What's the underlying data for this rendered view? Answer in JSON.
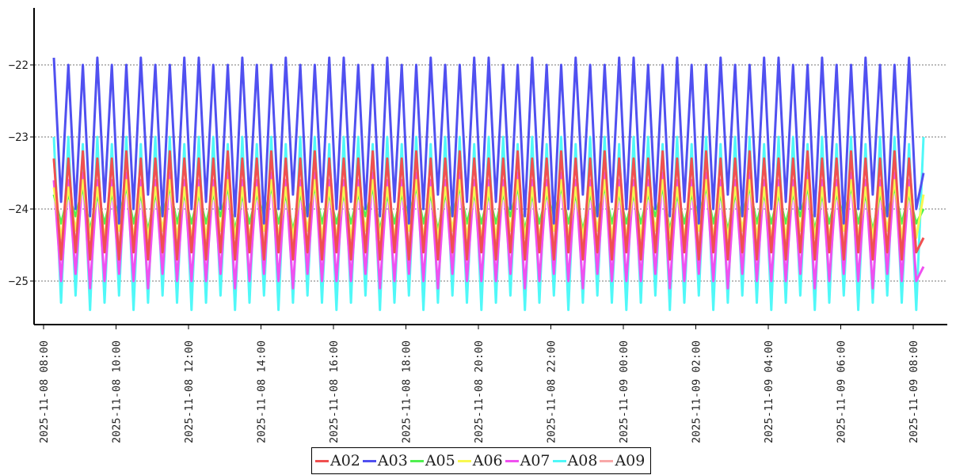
{
  "chart_data": {
    "type": "line",
    "title": "",
    "xlabel": "",
    "ylabel": "",
    "ylim": [
      -25.59,
      -21.21
    ],
    "grid": "horizontal-dashed",
    "legend_placement": "bottom-center",
    "x_start": "2025-11-08 08:17",
    "x_step_minutes": 12,
    "yticks": [
      {
        "value": -22,
        "label": "−22"
      },
      {
        "value": -23,
        "label": "−23"
      },
      {
        "value": -24,
        "label": "−24"
      },
      {
        "value": -25,
        "label": "−25"
      }
    ],
    "xticks": [
      {
        "hours": 0,
        "label": "2025-11-08  08:00"
      },
      {
        "hours": 2,
        "label": "2025-11-08  10:00"
      },
      {
        "hours": 4,
        "label": "2025-11-08  12:00"
      },
      {
        "hours": 6,
        "label": "2025-11-08  14:00"
      },
      {
        "hours": 8,
        "label": "2025-11-08  16:00"
      },
      {
        "hours": 10,
        "label": "2025-11-08  18:00"
      },
      {
        "hours": 12,
        "label": "2025-11-08  20:00"
      },
      {
        "hours": 14,
        "label": "2025-11-08  22:00"
      },
      {
        "hours": 16,
        "label": "2025-11-09  00:00"
      },
      {
        "hours": 18,
        "label": "2025-11-09  02:00"
      },
      {
        "hours": 20,
        "label": "2025-11-09  04:00"
      },
      {
        "hours": 22,
        "label": "2025-11-09  06:00"
      },
      {
        "hours": 24,
        "label": "2025-11-09  08:00"
      }
    ],
    "series": [
      {
        "name": "A02",
        "color": "#f05050",
        "values": [
          -23.3,
          -24.7,
          -23.3,
          -24.6,
          -23.2,
          -24.7,
          -23.3,
          -24.6,
          -23.3,
          -24.7,
          -23.2,
          -24.6,
          -23.3,
          -24.7,
          -23.3,
          -24.6,
          -23.2,
          -24.7,
          -23.3,
          -24.6,
          -23.3,
          -24.7,
          -23.3,
          -24.6,
          -23.2,
          -24.7,
          -23.3,
          -24.6,
          -23.3,
          -24.7,
          -23.2,
          -24.6,
          -23.3,
          -24.7,
          -23.3,
          -24.6,
          -23.2,
          -24.7,
          -23.3,
          -24.6,
          -23.3,
          -24.7,
          -23.3,
          -24.6,
          -23.2,
          -24.7,
          -23.3,
          -24.6,
          -23.3,
          -24.7,
          -23.2,
          -24.6,
          -23.3,
          -24.7,
          -23.3,
          -24.6,
          -23.2,
          -24.7,
          -23.3,
          -24.6,
          -23.3,
          -24.7,
          -23.3,
          -24.6,
          -23.2,
          -24.7,
          -23.3,
          -24.6,
          -23.3,
          -24.7,
          -23.2,
          -24.6,
          -23.3,
          -24.7,
          -23.3,
          -24.6,
          -23.2,
          -24.7,
          -23.3,
          -24.6,
          -23.3,
          -24.7,
          -23.3,
          -24.6,
          -23.2,
          -24.7,
          -23.3,
          -24.6,
          -23.3,
          -24.7,
          -23.2,
          -24.6,
          -23.3,
          -24.7,
          -23.3,
          -24.6,
          -23.2,
          -24.7,
          -23.3,
          -24.6,
          -23.3,
          -24.7,
          -23.3,
          -24.6,
          -23.2,
          -24.7,
          -23.3,
          -24.6,
          -23.3,
          -24.7,
          -23.2,
          -24.6,
          -23.3,
          -24.7,
          -23.3,
          -24.6,
          -23.2,
          -24.7,
          -23.3,
          -24.6,
          -24.4
        ]
      },
      {
        "name": "A03",
        "color": "#5050f0",
        "values": [
          -21.9,
          -23.9,
          -22.0,
          -24.0,
          -22.0,
          -24.1,
          -21.9,
          -23.9,
          -22.0,
          -24.2,
          -22.0,
          -24.0,
          -21.9,
          -23.8,
          -22.0,
          -24.1,
          -22.0,
          -23.9,
          -21.9,
          -24.0,
          -21.9,
          -23.9,
          -22.0,
          -24.0,
          -22.0,
          -24.1,
          -21.9,
          -23.9,
          -22.0,
          -24.2,
          -22.0,
          -24.0,
          -21.9,
          -23.8,
          -22.0,
          -24.1,
          -22.0,
          -23.9,
          -21.9,
          -24.0,
          -21.9,
          -23.9,
          -22.0,
          -24.0,
          -22.0,
          -24.1,
          -21.9,
          -23.9,
          -22.0,
          -24.2,
          -22.0,
          -24.0,
          -21.9,
          -23.8,
          -22.0,
          -24.1,
          -22.0,
          -23.9,
          -21.9,
          -24.0,
          -21.9,
          -23.9,
          -22.0,
          -24.0,
          -22.0,
          -24.1,
          -21.9,
          -23.9,
          -22.0,
          -24.2,
          -22.0,
          -24.0,
          -21.9,
          -23.8,
          -22.0,
          -24.1,
          -22.0,
          -23.9,
          -21.9,
          -24.0,
          -21.9,
          -23.9,
          -22.0,
          -24.0,
          -22.0,
          -24.1,
          -21.9,
          -23.9,
          -22.0,
          -24.2,
          -22.0,
          -24.0,
          -21.9,
          -23.8,
          -22.0,
          -24.1,
          -22.0,
          -23.9,
          -21.9,
          -24.0,
          -21.9,
          -23.9,
          -22.0,
          -24.0,
          -22.0,
          -24.1,
          -21.9,
          -23.9,
          -22.0,
          -24.2,
          -22.0,
          -24.0,
          -21.9,
          -23.8,
          -22.0,
          -24.1,
          -22.0,
          -23.9,
          -21.9,
          -24.0,
          -23.5
        ]
      },
      {
        "name": "A05",
        "color": "#50f050",
        "values": [
          -23.8,
          -24.2,
          -23.8,
          -24.1,
          -23.7,
          -24.3,
          -23.8,
          -24.2,
          -23.8,
          -24.1,
          -23.7,
          -24.2,
          -23.8,
          -24.3,
          -23.8,
          -24.1,
          -23.7,
          -24.2,
          -23.8,
          -24.2,
          -23.8,
          -24.2,
          -23.8,
          -24.1,
          -23.7,
          -24.3,
          -23.8,
          -24.2,
          -23.8,
          -24.1,
          -23.7,
          -24.2,
          -23.8,
          -24.3,
          -23.8,
          -24.1,
          -23.7,
          -24.2,
          -23.8,
          -24.2,
          -23.8,
          -24.2,
          -23.8,
          -24.1,
          -23.7,
          -24.3,
          -23.8,
          -24.2,
          -23.8,
          -24.1,
          -23.7,
          -24.2,
          -23.8,
          -24.3,
          -23.8,
          -24.1,
          -23.7,
          -24.2,
          -23.8,
          -24.2,
          -23.8,
          -24.2,
          -23.8,
          -24.1,
          -23.7,
          -24.3,
          -23.8,
          -24.2,
          -23.8,
          -24.1,
          -23.7,
          -24.2,
          -23.8,
          -24.3,
          -23.8,
          -24.1,
          -23.7,
          -24.2,
          -23.8,
          -24.2,
          -23.8,
          -24.2,
          -23.8,
          -24.1,
          -23.7,
          -24.3,
          -23.8,
          -24.2,
          -23.8,
          -24.1,
          -23.7,
          -24.2,
          -23.8,
          -24.3,
          -23.8,
          -24.1,
          -23.7,
          -24.2,
          -23.8,
          -24.2,
          -23.8,
          -24.2,
          -23.8,
          -24.1,
          -23.7,
          -24.3,
          -23.8,
          -24.2,
          -23.8,
          -24.1,
          -23.7,
          -24.2,
          -23.8,
          -24.3,
          -23.8,
          -24.1,
          -23.7,
          -24.2,
          -23.8,
          -24.2,
          -24.0
        ]
      },
      {
        "name": "A06",
        "color": "#f8f850",
        "values": [
          -23.7,
          -24.4,
          -23.7,
          -24.3,
          -23.6,
          -24.4,
          -23.7,
          -24.4,
          -23.7,
          -24.3,
          -23.6,
          -24.4,
          -23.7,
          -24.4,
          -23.7,
          -24.3,
          -23.6,
          -24.4,
          -23.7,
          -24.4,
          -23.7,
          -24.4,
          -23.7,
          -24.3,
          -23.6,
          -24.4,
          -23.7,
          -24.4,
          -23.7,
          -24.3,
          -23.6,
          -24.4,
          -23.7,
          -24.4,
          -23.7,
          -24.3,
          -23.6,
          -24.4,
          -23.7,
          -24.4,
          -23.7,
          -24.4,
          -23.7,
          -24.3,
          -23.6,
          -24.4,
          -23.7,
          -24.4,
          -23.7,
          -24.3,
          -23.6,
          -24.4,
          -23.7,
          -24.4,
          -23.7,
          -24.3,
          -23.6,
          -24.4,
          -23.7,
          -24.4,
          -23.7,
          -24.4,
          -23.7,
          -24.3,
          -23.6,
          -24.4,
          -23.7,
          -24.4,
          -23.7,
          -24.3,
          -23.6,
          -24.4,
          -23.7,
          -24.4,
          -23.7,
          -24.3,
          -23.6,
          -24.4,
          -23.7,
          -24.4,
          -23.7,
          -24.4,
          -23.7,
          -24.3,
          -23.6,
          -24.4,
          -23.7,
          -24.4,
          -23.7,
          -24.3,
          -23.6,
          -24.4,
          -23.7,
          -24.4,
          -23.7,
          -24.3,
          -23.6,
          -24.4,
          -23.7,
          -24.4,
          -23.7,
          -24.4,
          -23.7,
          -24.3,
          -23.6,
          -24.4,
          -23.7,
          -24.4,
          -23.7,
          -24.3,
          -23.6,
          -24.4,
          -23.7,
          -24.4,
          -23.7,
          -24.3,
          -23.6,
          -24.4,
          -23.7,
          -24.4,
          -23.8
        ]
      },
      {
        "name": "A07",
        "color": "#f050f0",
        "values": [
          -23.6,
          -25.0,
          -23.6,
          -24.9,
          -23.5,
          -25.1,
          -23.6,
          -25.0,
          -23.6,
          -24.9,
          -23.5,
          -25.0,
          -23.6,
          -25.1,
          -23.6,
          -24.9,
          -23.5,
          -25.0,
          -23.6,
          -25.0,
          -23.6,
          -25.0,
          -23.6,
          -24.9,
          -23.5,
          -25.1,
          -23.6,
          -25.0,
          -23.6,
          -24.9,
          -23.5,
          -25.0,
          -23.6,
          -25.1,
          -23.6,
          -24.9,
          -23.5,
          -25.0,
          -23.6,
          -25.0,
          -23.6,
          -25.0,
          -23.6,
          -24.9,
          -23.5,
          -25.1,
          -23.6,
          -25.0,
          -23.6,
          -24.9,
          -23.5,
          -25.0,
          -23.6,
          -25.1,
          -23.6,
          -24.9,
          -23.5,
          -25.0,
          -23.6,
          -25.0,
          -23.6,
          -25.0,
          -23.6,
          -24.9,
          -23.5,
          -25.1,
          -23.6,
          -25.0,
          -23.6,
          -24.9,
          -23.5,
          -25.0,
          -23.6,
          -25.1,
          -23.6,
          -24.9,
          -23.5,
          -25.0,
          -23.6,
          -25.0,
          -23.6,
          -25.0,
          -23.6,
          -24.9,
          -23.5,
          -25.1,
          -23.6,
          -25.0,
          -23.6,
          -24.9,
          -23.5,
          -25.0,
          -23.6,
          -25.1,
          -23.6,
          -24.9,
          -23.5,
          -25.0,
          -23.6,
          -25.0,
          -23.6,
          -25.0,
          -23.6,
          -24.9,
          -23.5,
          -25.1,
          -23.6,
          -25.0,
          -23.6,
          -24.9,
          -23.5,
          -25.0,
          -23.6,
          -25.1,
          -23.6,
          -24.9,
          -23.5,
          -25.0,
          -23.6,
          -25.0,
          -24.8
        ]
      },
      {
        "name": "A08",
        "color": "#50f8f8",
        "values": [
          -23.0,
          -25.3,
          -23.0,
          -25.2,
          -23.1,
          -25.4,
          -23.0,
          -25.3,
          -23.1,
          -25.2,
          -23.0,
          -25.4,
          -23.1,
          -25.3,
          -23.0,
          -25.2,
          -23.0,
          -25.3,
          -23.1,
          -25.4,
          -23.0,
          -25.3,
          -23.0,
          -25.2,
          -23.1,
          -25.4,
          -23.0,
          -25.3,
          -23.1,
          -25.2,
          -23.0,
          -25.4,
          -23.1,
          -25.3,
          -23.0,
          -25.2,
          -23.0,
          -25.3,
          -23.1,
          -25.4,
          -23.0,
          -25.3,
          -23.0,
          -25.2,
          -23.1,
          -25.4,
          -23.0,
          -25.3,
          -23.1,
          -25.2,
          -23.0,
          -25.4,
          -23.1,
          -25.3,
          -23.0,
          -25.2,
          -23.0,
          -25.3,
          -23.1,
          -25.4,
          -23.0,
          -25.3,
          -23.0,
          -25.2,
          -23.1,
          -25.4,
          -23.0,
          -25.3,
          -23.1,
          -25.2,
          -23.0,
          -25.4,
          -23.1,
          -25.3,
          -23.0,
          -25.2,
          -23.0,
          -25.3,
          -23.1,
          -25.4,
          -23.0,
          -25.3,
          -23.0,
          -25.2,
          -23.1,
          -25.4,
          -23.0,
          -25.3,
          -23.1,
          -25.2,
          -23.0,
          -25.4,
          -23.1,
          -25.3,
          -23.0,
          -25.2,
          -23.0,
          -25.3,
          -23.1,
          -25.4,
          -23.0,
          -25.3,
          -23.0,
          -25.2,
          -23.1,
          -25.4,
          -23.0,
          -25.3,
          -23.1,
          -25.2,
          -23.0,
          -25.4,
          -23.1,
          -25.3,
          -23.0,
          -25.2,
          -23.0,
          -25.3,
          -23.1,
          -25.4,
          -23.0
        ]
      },
      {
        "name": "A09",
        "color": "#f8a8a8",
        "values": [
          -23.3,
          -24.6,
          -23.3,
          -24.6,
          -23.3,
          -24.7,
          -23.3,
          -24.6,
          -23.3,
          -24.6,
          -23.3,
          -24.6,
          -23.3,
          -24.6,
          -23.3,
          -24.7,
          -23.3,
          -24.6,
          -23.3,
          -24.6,
          -23.3,
          -24.6,
          -23.3,
          -24.6,
          -23.3,
          -24.7,
          -23.3,
          -24.6,
          -23.3,
          -24.6,
          -23.3,
          -24.6,
          -23.3,
          -24.6,
          -23.3,
          -24.7,
          -23.3,
          -24.6,
          -23.3,
          -24.6,
          -23.3,
          -24.6,
          -23.3,
          -24.6,
          -23.3,
          -24.7,
          -23.3,
          -24.6,
          -23.3,
          -24.6,
          -23.3,
          -24.6,
          -23.3,
          -24.6,
          -23.3,
          -24.7,
          -23.3,
          -24.6,
          -23.3,
          -24.6,
          -23.3,
          -24.6,
          -23.3,
          -24.6,
          -23.3,
          -24.7,
          -23.3,
          -24.6,
          -23.3,
          -24.6,
          -23.3,
          -24.6,
          -23.3,
          -24.6,
          -23.3,
          -24.7,
          -23.3,
          -24.6,
          -23.3,
          -24.6,
          -23.3,
          -24.6,
          -23.3,
          -24.6,
          -23.3,
          -24.7,
          -23.3,
          -24.6,
          -23.3,
          -24.6,
          -23.3,
          -24.6,
          -23.3,
          -24.6,
          -23.3,
          -24.7,
          -23.3,
          -24.6,
          -23.3,
          -24.6,
          -23.3,
          -24.6,
          -23.3,
          -24.6,
          -23.3,
          -24.7,
          -23.3,
          -24.6,
          -23.3,
          -24.6,
          -23.3,
          -24.6,
          -23.3,
          -24.6,
          -23.3,
          -24.7,
          -23.3,
          -24.6,
          -23.3,
          -24.6,
          -24.4
        ]
      }
    ],
    "draw_order": [
      "A09",
      "A08",
      "A07",
      "A05",
      "A06",
      "A03",
      "A02"
    ]
  }
}
